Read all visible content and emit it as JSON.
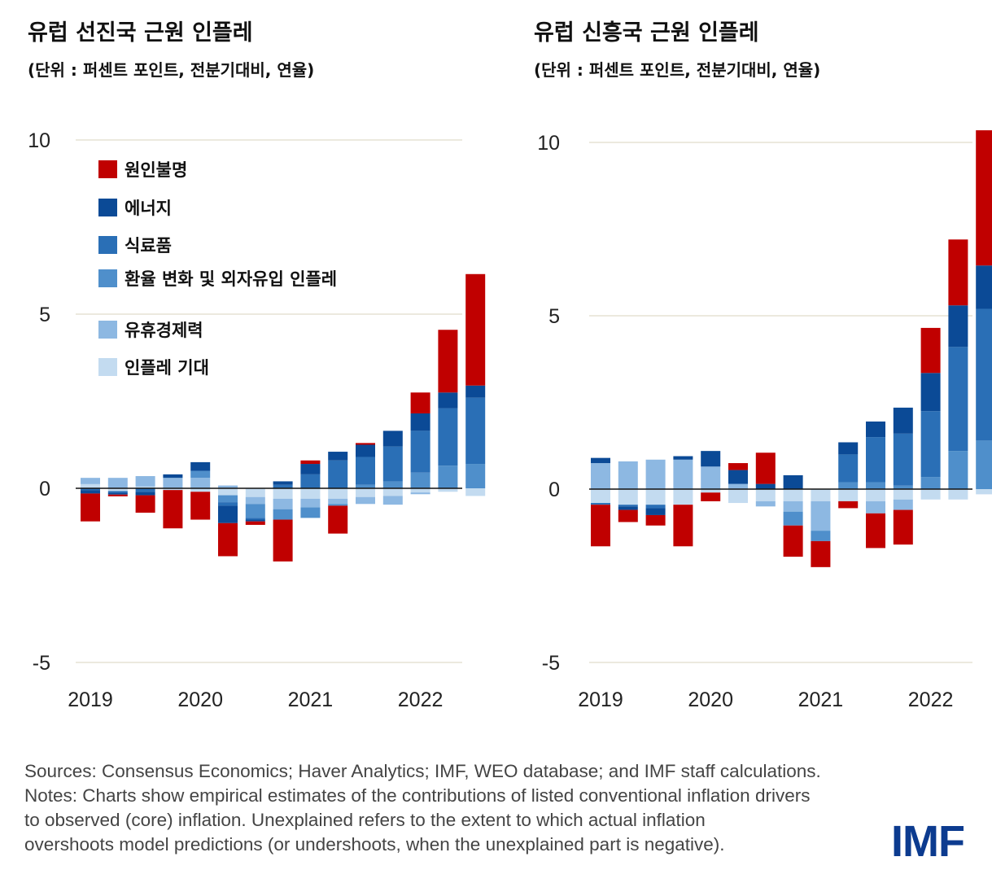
{
  "colors": {
    "unexplained": "#c00000",
    "energy": "#0b4a96",
    "food": "#2a6fb6",
    "exchange_rate": "#4f8fcb",
    "slack": "#8db8e2",
    "expectations": "#c3dbf0"
  },
  "chart_data": [
    {
      "type": "bar",
      "stacked": true,
      "title": "유럽 선진국 근원 인플레",
      "subtitle": "(단위 : 퍼센트 포인트, 전분기대비, 연율)",
      "ylim": [
        -5,
        10
      ],
      "yticks": [
        "10",
        "5",
        "0",
        "-5"
      ],
      "ytick_values": [
        10,
        5,
        0,
        -5
      ],
      "xtick_labels": [
        "2019",
        "2020",
        "2021",
        "2022"
      ],
      "xtick_positions": [
        0,
        4,
        8,
        12
      ],
      "legend": [
        {
          "key": "unexplained",
          "label": "원인불명"
        },
        {
          "key": "energy",
          "label": "에너지"
        },
        {
          "key": "food",
          "label": "식료품"
        },
        {
          "key": "exchange_rate",
          "label": "환율 변화 및 외자유입 인플레"
        },
        {
          "key": "slack",
          "label": "유휴경제력"
        },
        {
          "key": "expectations",
          "label": "인플레 기대"
        }
      ],
      "series": [
        {
          "key": "expectations",
          "name": "인플레 기대",
          "values": [
            0.12,
            -0.08,
            0.05,
            -0.05,
            -0.1,
            -0.2,
            -0.25,
            -0.3,
            -0.3,
            -0.3,
            -0.25,
            -0.22,
            -0.12,
            -0.1,
            -0.22
          ]
        },
        {
          "key": "slack",
          "name": "유휴경제력",
          "values": [
            0.18,
            0.3,
            0.3,
            0.3,
            0.3,
            0.08,
            -0.2,
            -0.3,
            -0.25,
            -0.15,
            -0.2,
            -0.25,
            -0.05,
            0.0,
            0.0
          ]
        },
        {
          "key": "exchange_rate",
          "name": "환율 변화 및 외자유입 인플레",
          "values": [
            0.0,
            0.0,
            0.0,
            0.0,
            0.2,
            -0.2,
            -0.4,
            -0.3,
            -0.3,
            -0.05,
            0.1,
            0.2,
            0.45,
            0.65,
            0.7
          ]
        },
        {
          "key": "food",
          "name": "식료품",
          "values": [
            -0.05,
            -0.05,
            -0.1,
            0.0,
            0.0,
            -0.1,
            -0.05,
            0.1,
            0.4,
            0.8,
            0.8,
            1.0,
            1.2,
            1.65,
            1.9
          ]
        },
        {
          "key": "energy",
          "name": "에너지",
          "values": [
            -0.1,
            -0.05,
            -0.1,
            0.1,
            0.25,
            -0.5,
            -0.05,
            0.1,
            0.3,
            0.25,
            0.35,
            0.45,
            0.5,
            0.45,
            0.35
          ]
        },
        {
          "key": "unexplained",
          "name": "원인불명",
          "values": [
            -0.8,
            -0.05,
            -0.5,
            -1.1,
            -0.8,
            -0.95,
            -0.1,
            -1.2,
            0.1,
            -0.8,
            0.05,
            0.0,
            0.6,
            1.8,
            3.2
          ]
        }
      ]
    },
    {
      "type": "bar",
      "stacked": true,
      "title": "유럽 신흥국 근원 인플레",
      "subtitle": "(단위 : 퍼센트 포인트, 전분기대비, 연율)",
      "ylim": [
        -5,
        10
      ],
      "yticks": [
        "10",
        "5",
        "0",
        "-5"
      ],
      "ytick_values": [
        10,
        5,
        0,
        -5
      ],
      "xtick_labels": [
        "2019",
        "2020",
        "2021",
        "2022"
      ],
      "xtick_positions": [
        0,
        4,
        8,
        12
      ],
      "series": [
        {
          "key": "expectations",
          "name": "인플레 기대",
          "values": [
            -0.4,
            -0.45,
            -0.45,
            -0.45,
            -0.1,
            -0.4,
            -0.35,
            -0.35,
            -0.35,
            -0.35,
            -0.35,
            -0.3,
            -0.3,
            -0.3,
            -0.15
          ]
        },
        {
          "key": "slack",
          "name": "유휴경제력",
          "values": [
            0.75,
            0.8,
            0.85,
            0.85,
            0.65,
            0.15,
            -0.15,
            -0.3,
            -0.85,
            0.0,
            -0.35,
            -0.3,
            0.0,
            0.0,
            0.0
          ]
        },
        {
          "key": "exchange_rate",
          "name": "환율 변화 및 외자유입 인플레",
          "values": [
            0.0,
            0.0,
            0.0,
            0.0,
            0.0,
            0.0,
            0.0,
            -0.4,
            -0.3,
            0.2,
            0.2,
            0.1,
            0.35,
            1.1,
            1.4
          ]
        },
        {
          "key": "food",
          "name": "식료품",
          "values": [
            -0.05,
            -0.05,
            -0.1,
            0.0,
            0.0,
            0.0,
            0.0,
            0.0,
            0.0,
            0.8,
            1.3,
            1.5,
            1.9,
            3.0,
            3.8
          ]
        },
        {
          "key": "energy",
          "name": "에너지",
          "values": [
            0.15,
            -0.1,
            -0.2,
            0.1,
            0.45,
            0.4,
            0.15,
            0.4,
            0.0,
            0.35,
            0.45,
            0.75,
            1.1,
            1.2,
            1.25
          ]
        },
        {
          "key": "unexplained",
          "name": "원인불명",
          "values": [
            -1.2,
            -0.35,
            -0.3,
            -1.2,
            -0.25,
            0.2,
            0.9,
            -0.9,
            -0.75,
            -0.2,
            -1.0,
            -1.0,
            1.3,
            1.9,
            3.9
          ]
        }
      ]
    }
  ],
  "notes": {
    "line1": "Sources: Consensus Economics; Haver Analytics; IMF, WEO database; and IMF staff calculations.",
    "line2": "Notes: Charts show empirical estimates of the contributions of listed conventional inflation drivers",
    "line3": "to observed (core) inflation. Unexplained refers to the extent to which actual inflation",
    "line4": "overshoots model predictions (or undershoots, when the unexplained part is negative)."
  },
  "logo": {
    "text": "IMF"
  }
}
